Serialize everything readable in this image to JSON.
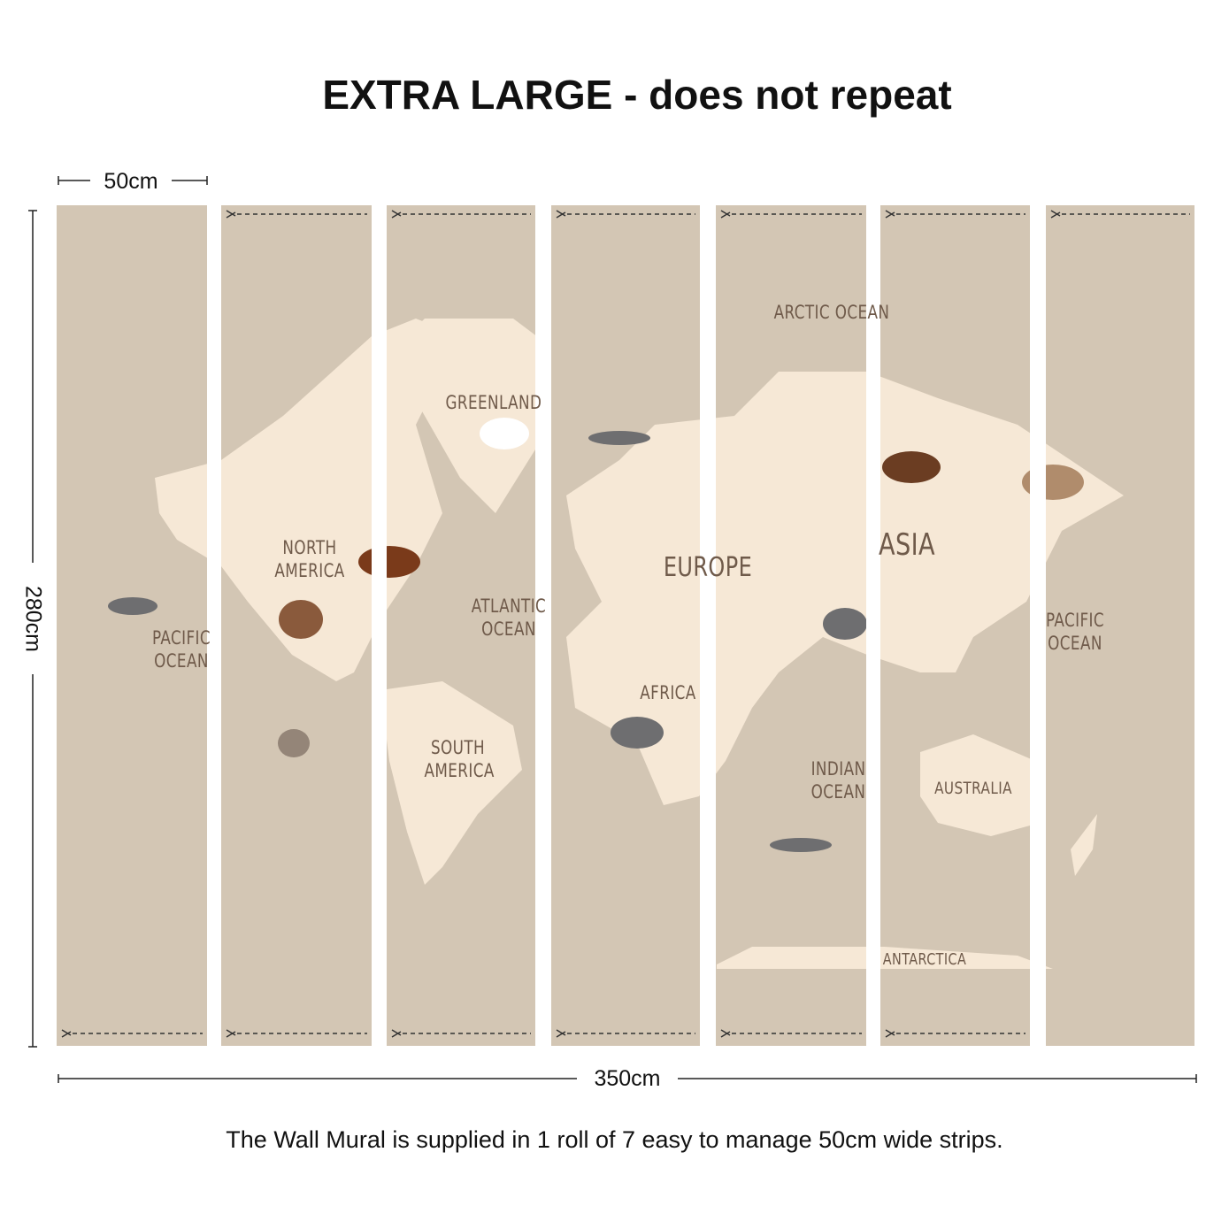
{
  "title": "EXTRA LARGE - does not repeat",
  "dimensions": {
    "strip_width": "50cm",
    "height": "280cm",
    "total_width": "350cm"
  },
  "map_labels": [
    "ARCTIC OCEAN",
    "GREENLAND",
    "NORTH AMERICA",
    "PACIFIC OCEAN",
    "ATLANTIC OCEAN",
    "EUROPE",
    "ASIA",
    "PACIFIC OCEAN",
    "AFRICA",
    "SOUTH AMERICA",
    "INDIAN OCEAN",
    "AUSTRALIA",
    "ANTARCTICA"
  ],
  "caption": "The Wall Mural is supplied in 1 roll of 7 easy to manage 50cm wide strips."
}
